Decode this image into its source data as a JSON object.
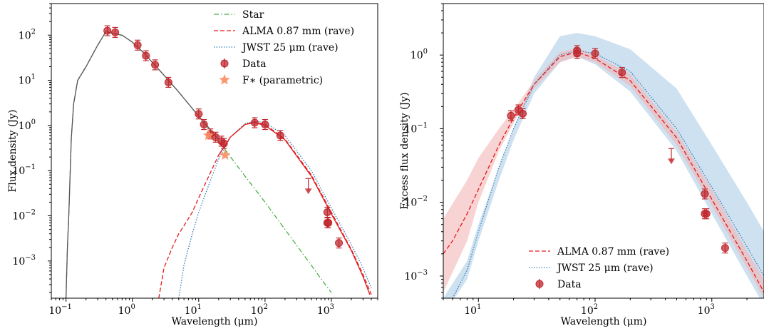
{
  "chart_data": [
    {
      "type": "line",
      "title": "",
      "xlabel": "Wavelength (μm)",
      "ylabel": "Flux density (Jy)",
      "xscale": "log",
      "yscale": "log",
      "xlim": [
        0.06,
        5000
      ],
      "ylim": [
        0.00015,
        500
      ],
      "x_ticks": [
        {
          "value": 0.1,
          "label": "10",
          "exp": "−1"
        },
        {
          "value": 1,
          "label": "10",
          "exp": "0"
        },
        {
          "value": 10,
          "label": "10",
          "exp": "1"
        },
        {
          "value": 100,
          "label": "10",
          "exp": "2"
        },
        {
          "value": 1000,
          "label": "10",
          "exp": "3"
        }
      ],
      "y_ticks": [
        {
          "value": 0.001,
          "label": "10",
          "exp": "−3"
        },
        {
          "value": 0.01,
          "label": "10",
          "exp": "−2"
        },
        {
          "value": 0.1,
          "label": "10",
          "exp": "−1"
        },
        {
          "value": 1,
          "label": "10",
          "exp": "0"
        },
        {
          "value": 10,
          "label": "10",
          "exp": "1"
        },
        {
          "value": 100,
          "label": "10",
          "exp": "2"
        }
      ],
      "legend_position": "top-right",
      "series": [
        {
          "name": "Star",
          "color": "#4daf4a",
          "dash": "dashdot",
          "points": [
            [
              0.1,
              0.00015
            ],
            [
              0.105,
              0.002
            ],
            [
              0.11,
              0.01
            ],
            [
              0.12,
              0.5
            ],
            [
              0.13,
              3
            ],
            [
              0.15,
              10
            ],
            [
              0.2,
              20
            ],
            [
              0.3,
              60
            ],
            [
              0.4,
              120
            ],
            [
              0.5,
              110
            ],
            [
              0.7,
              100
            ],
            [
              1,
              70
            ],
            [
              1.5,
              40
            ],
            [
              2,
              25
            ],
            [
              3,
              13
            ],
            [
              5,
              5.5
            ],
            [
              10,
              1.6
            ],
            [
              20,
              0.45
            ],
            [
              50,
              0.075
            ],
            [
              100,
              0.02
            ],
            [
              200,
              0.005
            ],
            [
              500,
              0.0008
            ],
            [
              700,
              0.0004
            ],
            [
              1000,
              0.0002
            ]
          ]
        },
        {
          "name": "ALMA 0.87 mm (rave)",
          "color": "#e41a1c",
          "dash": "dashed",
          "points": [
            [
              2.5,
              0.00015
            ],
            [
              3,
              0.0007
            ],
            [
              4,
              0.002
            ],
            [
              5,
              0.004
            ],
            [
              6,
              0.006
            ],
            [
              8,
              0.012
            ],
            [
              10,
              0.025
            ],
            [
              15,
              0.09
            ],
            [
              20,
              0.22
            ],
            [
              30,
              0.55
            ],
            [
              50,
              1.05
            ],
            [
              70,
              1.2
            ],
            [
              100,
              1.05
            ],
            [
              200,
              0.5
            ],
            [
              500,
              0.08
            ],
            [
              1000,
              0.012
            ],
            [
              2000,
              0.0018
            ],
            [
              3000,
              0.0005
            ],
            [
              4000,
              0.00018
            ]
          ]
        },
        {
          "name": "JWST 25 μm (rave)",
          "color": "#377eb8",
          "dash": "dotted",
          "points": [
            [
              5,
              0.00015
            ],
            [
              6,
              0.0008
            ],
            [
              8,
              0.004
            ],
            [
              10,
              0.012
            ],
            [
              15,
              0.06
            ],
            [
              20,
              0.18
            ],
            [
              30,
              0.55
            ],
            [
              50,
              1.1
            ],
            [
              70,
              1.25
            ],
            [
              100,
              1.15
            ],
            [
              200,
              0.6
            ],
            [
              500,
              0.1
            ],
            [
              1000,
              0.015
            ],
            [
              2000,
              0.0023
            ],
            [
              3000,
              0.0007
            ],
            [
              4000,
              0.00025
            ]
          ]
        },
        {
          "name": "",
          "color": "#e41a1c",
          "dash": "solid",
          "points": [
            [
              20,
              0.22
            ],
            [
              30,
              0.55
            ],
            [
              50,
              1.05
            ],
            [
              70,
              1.15
            ],
            [
              100,
              1.0
            ],
            [
              200,
              0.48
            ],
            [
              500,
              0.075
            ],
            [
              1000,
              0.011
            ],
            [
              2000,
              0.0017
            ],
            [
              3000,
              0.00045
            ],
            [
              3800,
              0.00018
            ]
          ]
        },
        {
          "name": "",
          "color": "#555555",
          "dash": "solid",
          "points": [
            [
              0.1,
              0.00015
            ],
            [
              0.105,
              0.002
            ],
            [
              0.11,
              0.01
            ],
            [
              0.12,
              0.5
            ],
            [
              0.13,
              3
            ],
            [
              0.15,
              10
            ],
            [
              0.2,
              20
            ],
            [
              0.3,
              60
            ],
            [
              0.4,
              120
            ],
            [
              0.5,
              110
            ],
            [
              0.7,
              100
            ],
            [
              1,
              70
            ],
            [
              1.5,
              40
            ],
            [
              2,
              25
            ],
            [
              3,
              13
            ],
            [
              5,
              5.5
            ],
            [
              10,
              1.6
            ],
            [
              20,
              0.5
            ]
          ]
        }
      ],
      "data_points": {
        "name": "Data",
        "color": "#c0272d",
        "points": [
          [
            0.42,
            125
          ],
          [
            0.55,
            115
          ],
          [
            1.2,
            60
          ],
          [
            1.6,
            35
          ],
          [
            2.2,
            22
          ],
          [
            3.5,
            9
          ],
          [
            10,
            1.8
          ],
          [
            12,
            1.05
          ],
          [
            15,
            0.65
          ],
          [
            18,
            0.55
          ],
          [
            22,
            0.45
          ],
          [
            24,
            0.4
          ],
          [
            70,
            1.15
          ],
          [
            100,
            1.05
          ],
          [
            170,
            0.6
          ],
          [
            870,
            0.012
          ],
          [
            870,
            0.007
          ],
          [
            900,
            0.007
          ],
          [
            1300,
            0.0025
          ]
        ],
        "upper_limits": [
          [
            450,
            0.05
          ]
        ]
      },
      "fstar": {
        "name": "F∗ (parametric)",
        "color": "#fc8d62",
        "points": [
          [
            14,
            0.6
          ],
          [
            25,
            0.22
          ]
        ]
      }
    },
    {
      "type": "line",
      "title": "",
      "xlabel": "Wavelength (μm)",
      "ylabel": "Excess flux density (Jy)",
      "xscale": "log",
      "yscale": "log",
      "xlim": [
        5,
        2800
      ],
      "ylim": [
        0.0005,
        5
      ],
      "x_ticks": [
        {
          "value": 10,
          "label": "10",
          "exp": "1"
        },
        {
          "value": 100,
          "label": "10",
          "exp": "2"
        },
        {
          "value": 1000,
          "label": "10",
          "exp": "3"
        }
      ],
      "y_ticks": [
        {
          "value": 0.001,
          "label": "10",
          "exp": "−3"
        },
        {
          "value": 0.01,
          "label": "10",
          "exp": "−2"
        },
        {
          "value": 0.1,
          "label": "10",
          "exp": "−1"
        },
        {
          "value": 1,
          "label": "10",
          "exp": "0"
        }
      ],
      "legend_position": "lower-center",
      "bands": [
        {
          "color": "#a6c8e3",
          "opacity": 0.55,
          "upper": [
            [
              5,
              0.0005
            ],
            [
              8,
              0.0016
            ],
            [
              10,
              0.005
            ],
            [
              15,
              0.03
            ],
            [
              20,
              0.1
            ],
            [
              30,
              0.5
            ],
            [
              50,
              1.8
            ],
            [
              70,
              2.0
            ],
            [
              100,
              1.8
            ],
            [
              200,
              1.2
            ],
            [
              500,
              0.35
            ],
            [
              1000,
              0.06
            ],
            [
              2000,
              0.01
            ],
            [
              2800,
              0.004
            ]
          ],
          "lower": [
            [
              5,
              0.0003
            ],
            [
              8,
              0.0009
            ],
            [
              10,
              0.003
            ],
            [
              15,
              0.02
            ],
            [
              20,
              0.07
            ],
            [
              30,
              0.3
            ],
            [
              50,
              0.8
            ],
            [
              70,
              0.95
            ],
            [
              100,
              0.75
            ],
            [
              200,
              0.32
            ],
            [
              500,
              0.05
            ],
            [
              1000,
              0.007
            ],
            [
              2000,
              0.001
            ],
            [
              2800,
              0.0004
            ]
          ]
        },
        {
          "color": "#f4b6b6",
          "opacity": 0.6,
          "upper": [
            [
              5,
              0.006
            ],
            [
              8,
              0.02
            ],
            [
              10,
              0.04
            ],
            [
              15,
              0.1
            ],
            [
              20,
              0.18
            ],
            [
              30,
              0.45
            ],
            [
              50,
              1.1
            ],
            [
              70,
              1.25
            ],
            [
              100,
              1.0
            ],
            [
              200,
              0.55
            ],
            [
              500,
              0.09
            ],
            [
              1000,
              0.015
            ],
            [
              2000,
              0.0022
            ],
            [
              2800,
              0.0009
            ]
          ],
          "lower": [
            [
              5,
              0.0006
            ],
            [
              8,
              0.003
            ],
            [
              10,
              0.01
            ],
            [
              15,
              0.05
            ],
            [
              20,
              0.12
            ],
            [
              30,
              0.35
            ],
            [
              50,
              0.8
            ],
            [
              70,
              0.95
            ],
            [
              100,
              0.8
            ],
            [
              200,
              0.38
            ],
            [
              500,
              0.06
            ],
            [
              1000,
              0.009
            ],
            [
              2000,
              0.0013
            ],
            [
              2800,
              0.0005
            ]
          ]
        }
      ],
      "series": [
        {
          "name": "ALMA 0.87 mm (rave)",
          "color": "#e41a1c",
          "dash": "dashed",
          "points": [
            [
              5,
              0.002
            ],
            [
              6,
              0.003
            ],
            [
              8,
              0.007
            ],
            [
              10,
              0.015
            ],
            [
              15,
              0.06
            ],
            [
              20,
              0.14
            ],
            [
              30,
              0.4
            ],
            [
              50,
              0.95
            ],
            [
              70,
              1.1
            ],
            [
              100,
              0.9
            ],
            [
              200,
              0.45
            ],
            [
              500,
              0.075
            ],
            [
              1000,
              0.011
            ],
            [
              2000,
              0.0016
            ],
            [
              2800,
              0.0006
            ]
          ]
        },
        {
          "name": "JWST 25 μm (rave)",
          "color": "#377eb8",
          "dash": "dotted",
          "points": [
            [
              6,
              0.0005
            ],
            [
              8,
              0.0012
            ],
            [
              10,
              0.004
            ],
            [
              15,
              0.03
            ],
            [
              20,
              0.1
            ],
            [
              30,
              0.4
            ],
            [
              50,
              1.0
            ],
            [
              70,
              1.15
            ],
            [
              100,
              1.05
            ],
            [
              200,
              0.6
            ],
            [
              500,
              0.1
            ],
            [
              1000,
              0.016
            ],
            [
              2000,
              0.0025
            ],
            [
              2800,
              0.001
            ]
          ]
        }
      ],
      "data_points": {
        "name": "Data",
        "color": "#c0272d",
        "points": [
          [
            19,
            0.15
          ],
          [
            22,
            0.18
          ],
          [
            24,
            0.16
          ],
          [
            70,
            1.05
          ],
          [
            70,
            1.15
          ],
          [
            100,
            1.05
          ],
          [
            170,
            0.58
          ],
          [
            870,
            0.013
          ],
          [
            870,
            0.007
          ],
          [
            900,
            0.007
          ],
          [
            1300,
            0.0024
          ]
        ],
        "upper_limits": [
          [
            450,
            0.045
          ]
        ]
      }
    }
  ]
}
